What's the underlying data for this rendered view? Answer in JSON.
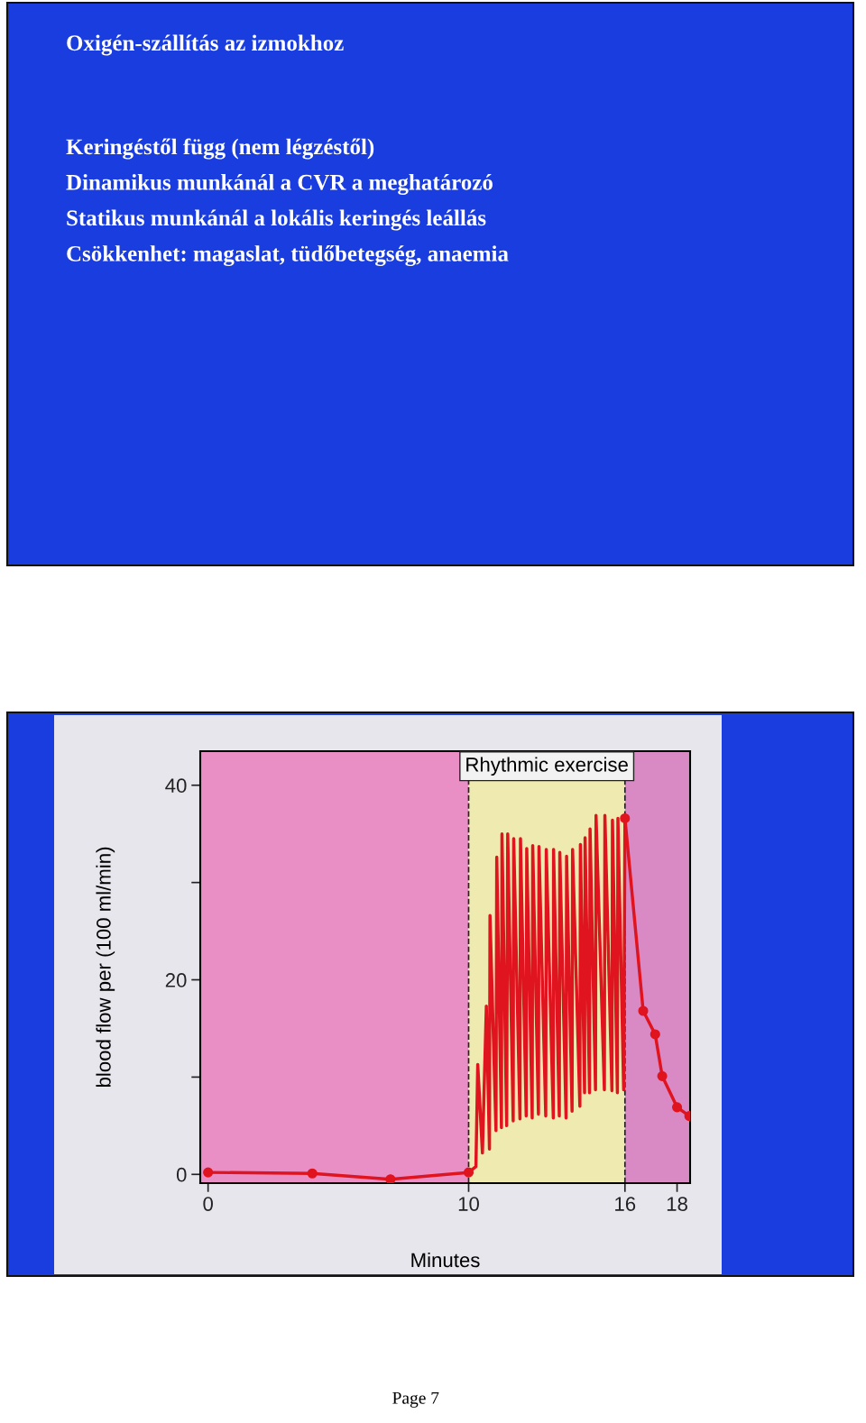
{
  "chart_data": {
    "type": "line",
    "title": "Oxigén-szállítás az izmokhoz",
    "annotations": [
      "Keringéstől függ (nem légzéstől)",
      "Dinamikus munkánál a CVR a meghatározó",
      "Statikus munkánál a lokális keringés leállás",
      "Csökkenhet: magaslat, tüdőbetegség, anaemia",
      "Page 7"
    ],
    "xlabel": "Minutes",
    "ylabel": "blood flow per (100 ml/min)",
    "series": [
      {
        "color": "#e0141e",
        "marker": "circle",
        "x": [
          0,
          4,
          7,
          10
        ],
        "values": [
          0.2,
          0.1,
          -0.5,
          0.2
        ]
      },
      {
        "color": "#e0141e",
        "marker": "none",
        "x": [
          10,
          10.28,
          10.35,
          10.53,
          10.68,
          10.8,
          10.82,
          11.05,
          11.08,
          11.26,
          11.28,
          11.46,
          11.5,
          11.71,
          11.73,
          11.97,
          11.99,
          12.21,
          12.23,
          12.44,
          12.46,
          12.68,
          12.7,
          12.96,
          12.98,
          13.25,
          13.26,
          13.48,
          13.5,
          13.74,
          13.76,
          13.97,
          13.99,
          14.27,
          14.29,
          14.45,
          14.47,
          14.64,
          14.66,
          14.87,
          14.89,
          15.21,
          15.23,
          15.5,
          15.52,
          15.71,
          15.73,
          15.95,
          16
        ],
        "values": [
          0.2,
          0.8,
          11.3,
          2.2,
          17.3,
          2.6,
          26.6,
          4.5,
          32.6,
          4.8,
          35.0,
          5.0,
          35.0,
          5.5,
          34.5,
          5.7,
          34.5,
          6.0,
          33.5,
          5.8,
          33.8,
          6.2,
          33.7,
          6.0,
          33.4,
          5.8,
          33.4,
          6.0,
          33.1,
          5.8,
          32.7,
          6.5,
          33.4,
          7.0,
          33.9,
          8.4,
          34.6,
          8.4,
          35.5,
          8.7,
          36.9,
          8.7,
          36.9,
          8.6,
          36.4,
          8.4,
          36.6,
          8.7,
          36.6
        ]
      },
      {
        "color": "#e0141e",
        "marker": "circle",
        "x": [
          16,
          16.7,
          17.16,
          17.43,
          18.0,
          18.47
        ],
        "values": [
          36.6,
          16.8,
          14.4,
          10.1,
          6.9,
          6.0
        ]
      }
    ],
    "xlim": [
      -0.3,
      18.5
    ],
    "xticks": [
      0,
      10,
      16,
      18
    ],
    "ylim": [
      -0.9,
      43.5
    ],
    "yticks": [
      0,
      {
        "value": 10,
        "label": null
      },
      20,
      {
        "value": 30,
        "label": null
      },
      40
    ],
    "bands": [
      {
        "axis": "x",
        "from": -0.3,
        "to": 10,
        "color": "#e98fc6"
      },
      {
        "axis": "x",
        "from": 10,
        "to": 16,
        "color": "#eeeab0",
        "label": "Rhythmic exercise"
      },
      {
        "axis": "x",
        "from": 16,
        "to": 18.5,
        "color": "#d98ac4"
      }
    ],
    "ref_lines": [
      {
        "axis": "x",
        "value": 10,
        "color": "#222222",
        "line_style": "dashed"
      },
      {
        "axis": "x",
        "value": 16,
        "color": "#222222",
        "line_style": "dashed"
      }
    ],
    "grid": false,
    "legend": false,
    "line_style": "solid"
  }
}
